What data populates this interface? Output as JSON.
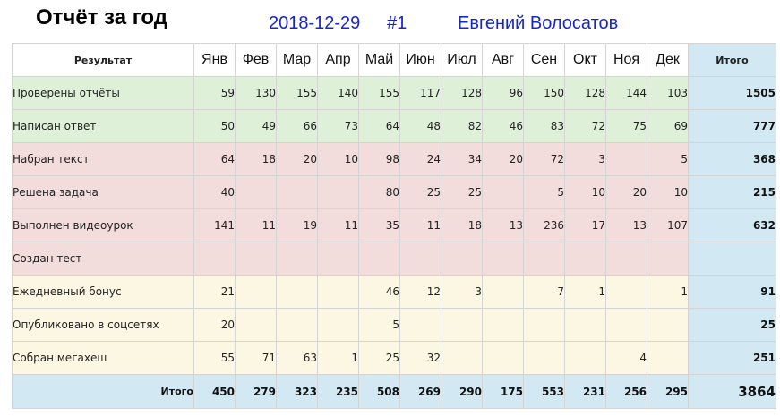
{
  "header": {
    "title": "Отчёт за год",
    "date": "2018-12-29",
    "report_no": "#1",
    "user": "Евгений Волосатов"
  },
  "table": {
    "result_header": "Результат",
    "total_header": "Итого",
    "months": [
      "Янв",
      "Фев",
      "Мар",
      "Апр",
      "Май",
      "Июн",
      "Июл",
      "Авг",
      "Сен",
      "Окт",
      "Ноя",
      "Дек"
    ],
    "rows": [
      {
        "label": "Проверены отчёты",
        "color": "#dff0d9",
        "values": [
          "59",
          "130",
          "155",
          "140",
          "155",
          "117",
          "128",
          "96",
          "150",
          "128",
          "144",
          "103"
        ],
        "total": "1505"
      },
      {
        "label": "Написан ответ",
        "color": "#dff0d9",
        "values": [
          "50",
          "49",
          "66",
          "73",
          "64",
          "48",
          "82",
          "46",
          "83",
          "72",
          "75",
          "69"
        ],
        "total": "777"
      },
      {
        "label": "Набран текст",
        "color": "#f3dcdc",
        "values": [
          "64",
          "18",
          "20",
          "10",
          "98",
          "24",
          "34",
          "20",
          "72",
          "3",
          "",
          "5"
        ],
        "total": "368"
      },
      {
        "label": "Решена задача",
        "color": "#f3dcdc",
        "values": [
          "40",
          "",
          "",
          "",
          "80",
          "25",
          "25",
          "",
          "5",
          "10",
          "20",
          "10"
        ],
        "total": "215"
      },
      {
        "label": "Выполнен видеоурок",
        "color": "#f3dcdc",
        "values": [
          "141",
          "11",
          "19",
          "11",
          "35",
          "11",
          "18",
          "13",
          "236",
          "17",
          "13",
          "107"
        ],
        "total": "632"
      },
      {
        "label": "Создан тест",
        "color": "#f3dcdc",
        "values": [
          "",
          "",
          "",
          "",
          "",
          "",
          "",
          "",
          "",
          "",
          "",
          ""
        ],
        "total": ""
      },
      {
        "label": "Ежедневный бонус",
        "color": "#fcf7e3",
        "values": [
          "21",
          "",
          "",
          "",
          "46",
          "12",
          "3",
          "",
          "7",
          "1",
          "",
          "1"
        ],
        "total": "91"
      },
      {
        "label": "Опубликовано в соцсетях",
        "color": "#fcf7e3",
        "values": [
          "20",
          "",
          "",
          "",
          "5",
          "",
          "",
          "",
          "",
          "",
          "",
          ""
        ],
        "total": "25"
      },
      {
        "label": "Собран мегахеш",
        "color": "#fcf7e3",
        "values": [
          "55",
          "71",
          "63",
          "1",
          "25",
          "32",
          "",
          "",
          "",
          "",
          "4",
          ""
        ],
        "total": "251"
      }
    ],
    "footer": {
      "label": "Итого",
      "values": [
        "450",
        "279",
        "323",
        "235",
        "508",
        "269",
        "290",
        "175",
        "553",
        "231",
        "256",
        "295"
      ],
      "grand_total": "3864"
    }
  }
}
